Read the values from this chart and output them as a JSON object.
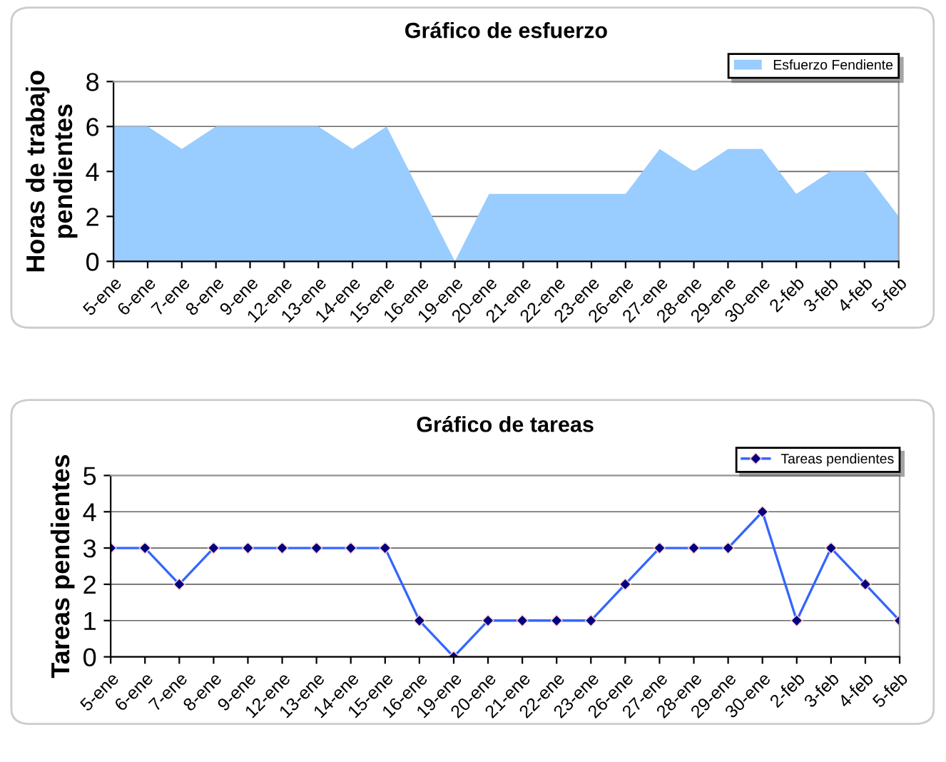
{
  "chart_data": [
    {
      "type": "area",
      "title": "Gráfico de esfuerzo",
      "ylabel": "Horas de trabajo\npendientes",
      "categories": [
        "5-ene",
        "6-ene",
        "7-ene",
        "8-ene",
        "9-ene",
        "12-ene",
        "13-ene",
        "14-ene",
        "15-ene",
        "16-ene",
        "19-ene",
        "20-ene",
        "21-ene",
        "22-ene",
        "23-ene",
        "26-ene",
        "27-ene",
        "28-ene",
        "29-ene",
        "30-ene",
        "2-feb",
        "3-feb",
        "4-feb",
        "5-feb"
      ],
      "series": [
        {
          "name": "Esfuerzo Fendiente",
          "color": "#99ccff",
          "values": [
            6,
            6,
            5,
            6,
            6,
            6,
            6,
            5,
            6,
            3,
            0,
            3,
            3,
            3,
            3,
            3,
            5,
            4,
            5,
            5,
            3,
            4,
            4,
            2
          ]
        }
      ],
      "ylim": [
        0,
        8
      ],
      "yticks": [
        0,
        2,
        4,
        6,
        8
      ],
      "grid": "y",
      "legend": "top right"
    },
    {
      "type": "line",
      "title": "Gráfico de tareas",
      "ylabel": "Tareas pendientes",
      "categories": [
        "5-ene",
        "6-ene",
        "7-ene",
        "8-ene",
        "9-ene",
        "12-ene",
        "13-ene",
        "14-ene",
        "15-ene",
        "16-ene",
        "19-ene",
        "20-ene",
        "21-ene",
        "22-ene",
        "23-ene",
        "26-ene",
        "27-ene",
        "28-ene",
        "29-ene",
        "30-ene",
        "2-feb",
        "3-feb",
        "4-feb",
        "5-feb"
      ],
      "series": [
        {
          "name": "Tareas pendientes",
          "color": "#3366ff",
          "values": [
            3,
            3,
            2,
            3,
            3,
            3,
            3,
            3,
            3,
            1,
            0,
            1,
            1,
            1,
            1,
            2,
            3,
            3,
            3,
            4,
            1,
            3,
            2,
            1
          ]
        }
      ],
      "ylim": [
        0,
        5
      ],
      "yticks": [
        0,
        1,
        2,
        3,
        4,
        5
      ],
      "grid": "y",
      "legend": "top right",
      "marker": "diamond"
    }
  ]
}
